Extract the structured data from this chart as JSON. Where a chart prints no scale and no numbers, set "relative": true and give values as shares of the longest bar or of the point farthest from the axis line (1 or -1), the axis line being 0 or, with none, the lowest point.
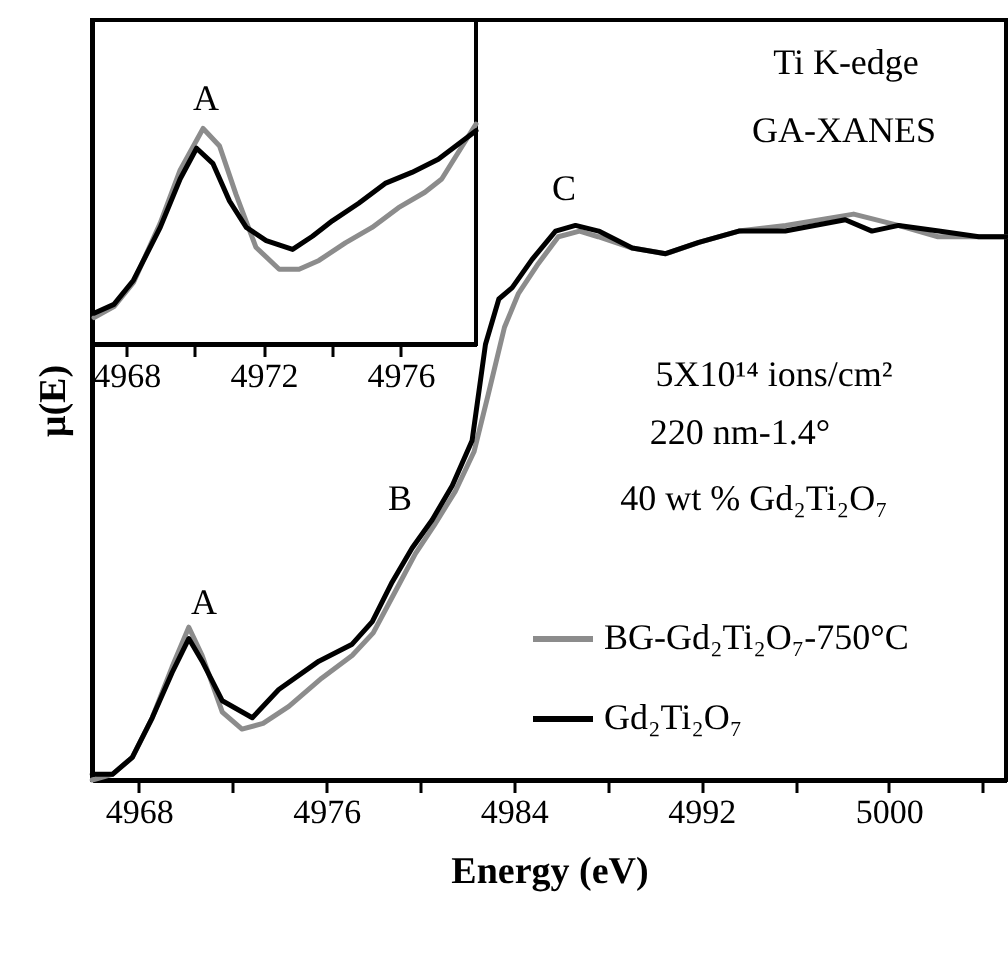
{
  "chart_data": [
    {
      "type": "line",
      "relative": true,
      "xlabel": "Energy (eV)",
      "ylabel": "μ(E)",
      "xlim": [
        4966,
        5005
      ],
      "xticks": [
        4968,
        {
          "value": 4972,
          "label": null
        },
        4976,
        {
          "value": 4980,
          "label": null
        },
        4984,
        {
          "value": 4988,
          "label": null
        },
        4992,
        {
          "value": 4996,
          "label": null
        },
        5000,
        {
          "value": 5004,
          "label": null
        }
      ],
      "legend": "bottom right",
      "annotations": [
        "Ti K-edge",
        "GA-XANES",
        "5X10¹⁴ ions/cm²",
        "220 nm-1.4°",
        "40 wt % Gd₂Ti₂O₇",
        "A",
        "B",
        "C"
      ],
      "series": [
        {
          "name": "BG-Gd₂Ti₂O₇-750°C",
          "color": "#8c8c8c",
          "x": [
            4966.01,
            4966.87,
            4967.72,
            4968.57,
            4969.42,
            4970.13,
            4970.7,
            4971.56,
            4972.4,
            4973.3,
            4974.4,
            4975.8,
            4977.1,
            4978.0,
            4978.9,
            4979.8,
            4980.6,
            4981.5,
            4982.3,
            4982.9,
            4983.6,
            4984.2,
            4985.0,
            4985.9,
            4986.8,
            4987.6,
            4989.05,
            4990.5,
            4991.9,
            4993.6,
            4995.6,
            4998.5,
            5000.4,
            5002.1,
            5003.8,
            5005
          ],
          "values": [
            0.0,
            0.01,
            0.04,
            0.11,
            0.2,
            0.27,
            0.22,
            0.12,
            0.09,
            0.1,
            0.13,
            0.18,
            0.22,
            0.26,
            0.33,
            0.4,
            0.45,
            0.51,
            0.58,
            0.68,
            0.8,
            0.86,
            0.91,
            0.96,
            0.97,
            0.96,
            0.94,
            0.93,
            0.95,
            0.97,
            0.98,
            1.0,
            0.98,
            0.96,
            0.96,
            0.96
          ]
        },
        {
          "name": "Gd₂Ti₂O₇",
          "color": "#000000",
          "x": [
            4966.01,
            4966.87,
            4967.72,
            4968.57,
            4969.42,
            4970.13,
            4970.7,
            4971.56,
            4972.84,
            4973.97,
            4975.68,
            4977.1,
            4977.96,
            4978.81,
            4979.66,
            4980.52,
            4981.37,
            4982.22,
            4982.79,
            4983.36,
            4983.93,
            4984.78,
            4985.78,
            4986.63,
            4987.62,
            4989.05,
            4990.47,
            4991.89,
            4993.6,
            4995.58,
            4998.14,
            4999.28,
            5000.42,
            5002.13,
            5003.84,
            5005
          ],
          "values": [
            0.01,
            0.01,
            0.04,
            0.11,
            0.19,
            0.25,
            0.21,
            0.14,
            0.11,
            0.16,
            0.21,
            0.24,
            0.28,
            0.35,
            0.41,
            0.46,
            0.52,
            0.6,
            0.77,
            0.85,
            0.87,
            0.92,
            0.97,
            0.98,
            0.97,
            0.94,
            0.93,
            0.95,
            0.97,
            0.97,
            0.99,
            0.97,
            0.98,
            0.97,
            0.96,
            0.96
          ]
        }
      ]
    },
    {
      "type": "line",
      "relative": true,
      "xlim": [
        4967,
        4978.2
      ],
      "xticks": [
        4968,
        {
          "value": 4970,
          "label": null
        },
        4972,
        {
          "value": 4974,
          "label": null
        },
        4976
      ],
      "annotations": [
        "A"
      ],
      "series": [
        {
          "color": "#8c8c8c",
          "x": [
            4967.06,
            4967.64,
            4968.21,
            4968.99,
            4969.57,
            4970.24,
            4970.72,
            4971.2,
            4971.78,
            4972.46,
            4973.04,
            4973.62,
            4974.39,
            4975.17,
            4975.94,
            4976.71,
            4977.2,
            4978.2
          ],
          "values": [
            0.12,
            0.17,
            0.28,
            0.55,
            0.79,
            0.98,
            0.9,
            0.68,
            0.44,
            0.34,
            0.34,
            0.38,
            0.46,
            0.53,
            0.62,
            0.69,
            0.75,
            1.0
          ]
        },
        {
          "color": "#000000",
          "x": [
            4967.06,
            4967.64,
            4968.21,
            4968.99,
            4969.57,
            4970.05,
            4970.53,
            4971.01,
            4971.5,
            4972.08,
            4972.85,
            4973.43,
            4974.01,
            4974.78,
            4975.55,
            4976.33,
            4977.1,
            4978.2
          ],
          "values": [
            0.14,
            0.18,
            0.29,
            0.53,
            0.75,
            0.89,
            0.82,
            0.65,
            0.53,
            0.47,
            0.43,
            0.49,
            0.56,
            0.64,
            0.73,
            0.78,
            0.84,
            0.97
          ]
        }
      ]
    }
  ]
}
